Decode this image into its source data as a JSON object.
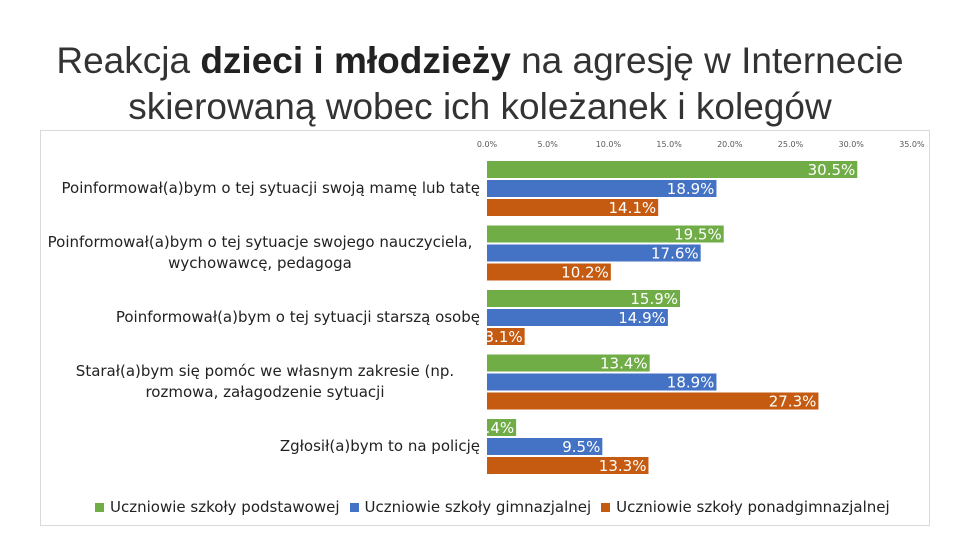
{
  "title": {
    "before": "Reakcja ",
    "emphasis": "dzieci i młodzieży",
    "after": " na agresję w Internecie skierowaną wobec ich koleżanek i kolegów"
  },
  "colors": {
    "podstawowa": "#70ad47",
    "gimnazjalna": "#4472c4",
    "ponadgimnazjalna": "#c55a11"
  },
  "chart_data": {
    "type": "bar",
    "orientation": "horizontal",
    "categories": [
      "Poinformował(a)bym o tej sytuacji swoją mamę lub tatę",
      "Poinformował(a)bym o tej sytuacje swojego nauczyciela, wychowawcę, pedagoga",
      "Poinformował(a)bym o tej sytuacji starszą osobę",
      "Starał(a)bym się pomóc we własnym zakresie (np. rozmowa, załagodzenie sytuacji",
      "Zgłosił(a)bym to na policję"
    ],
    "series": [
      {
        "name": "Uczniowie szkoły podstawowej",
        "values": [
          30.5,
          19.5,
          15.9,
          13.4,
          2.4
        ],
        "labels": [
          "30.5%",
          "19.5%",
          "15.9%",
          "13.4%",
          "2.4%"
        ]
      },
      {
        "name": "Uczniowie szkoły gimnazjalnej",
        "values": [
          18.9,
          17.6,
          14.9,
          18.9,
          9.5
        ],
        "labels": [
          "18.9%",
          "17.6%",
          "14.9%",
          "18.9%",
          "9.5%"
        ]
      },
      {
        "name": "Uczniowie szkoły ponadgimnazjalnej",
        "values": [
          14.1,
          10.2,
          3.1,
          27.3,
          13.3
        ],
        "labels": [
          "14.1%",
          "10.2%",
          "3.1%",
          "27.3%",
          "13.3%"
        ]
      }
    ],
    "xlim": [
      0,
      35
    ],
    "xticks": [
      "0.0%",
      "5.0%",
      "10.0%",
      "15.0%",
      "20.0%",
      "25.0%",
      "30.0%",
      "35.0%"
    ],
    "legend": "bottom",
    "grid": false
  }
}
